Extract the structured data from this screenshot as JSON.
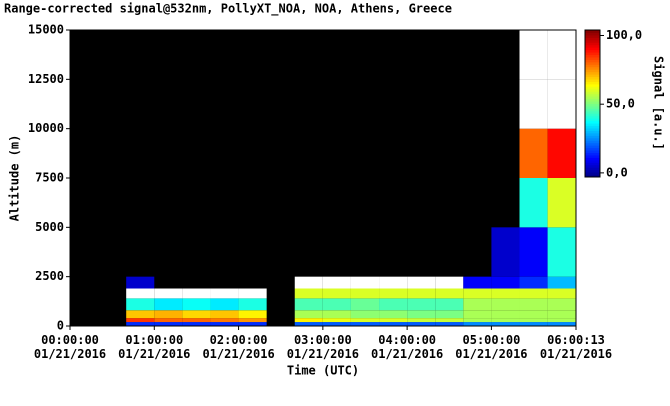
{
  "chart_data": {
    "type": "heatmap",
    "title": "Range-corrected signal@532nm, PollyXT_NOA, NOA, Athens, Greece",
    "x_label": "Time (UTC)",
    "y_label": "Altitude (m)",
    "colorbar_label": "Signal [a.u.]",
    "xlim": [
      0,
      21613
    ],
    "xticks": [
      {
        "value": 0,
        "label": "00:00:00\n01/21/2016"
      },
      {
        "value": 3600,
        "label": "01:00:00\n01/21/2016"
      },
      {
        "value": 7200,
        "label": "02:00:00\n01/21/2016"
      },
      {
        "value": 10800,
        "label": "03:00:00\n01/21/2016"
      },
      {
        "value": 14400,
        "label": "04:00:00\n01/21/2016"
      },
      {
        "value": 18000,
        "label": "05:00:00\n01/21/2016"
      },
      {
        "value": 21613,
        "label": "06:00:13\n01/21/2016"
      }
    ],
    "ylim": [
      0,
      15000
    ],
    "yticks": [
      0,
      2500,
      5000,
      7500,
      10000,
      12500,
      15000
    ],
    "clim": [
      -3,
      104
    ],
    "cticks": [
      {
        "value": 0,
        "label": "0,0"
      },
      {
        "value": 50,
        "label": "50,0"
      },
      {
        "value": 100,
        "label": "100,0"
      }
    ],
    "x_edges": [
      0,
      1200,
      2400,
      3600,
      4800,
      6000,
      7200,
      8400,
      9600,
      10800,
      12000,
      13200,
      14400,
      15600,
      16800,
      18000,
      19200,
      20400,
      21613
    ],
    "y_edges": [
      0,
      200,
      400,
      800,
      1400,
      1900,
      2500,
      5000,
      7500,
      10000,
      12500,
      15000
    ],
    "z": [
      [
        null,
        null,
        15,
        15,
        15,
        15,
        15,
        null,
        20,
        20,
        20,
        20,
        20,
        20,
        25,
        25,
        25,
        25
      ],
      [
        null,
        null,
        85,
        80,
        80,
        78,
        75,
        null,
        65,
        62,
        60,
        60,
        58,
        58,
        55,
        55,
        55,
        55
      ],
      [
        null,
        null,
        70,
        72,
        68,
        70,
        65,
        null,
        55,
        55,
        52,
        52,
        50,
        50,
        55,
        55,
        55,
        55
      ],
      [
        null,
        null,
        40,
        35,
        38,
        35,
        40,
        null,
        45,
        45,
        48,
        45,
        45,
        45,
        55,
        55,
        55,
        55
      ],
      [
        null,
        null,
        110,
        110,
        110,
        110,
        110,
        null,
        60,
        60,
        60,
        60,
        60,
        60,
        60,
        60,
        60,
        60
      ],
      [
        null,
        null,
        5,
        null,
        null,
        null,
        null,
        null,
        110,
        110,
        110,
        110,
        110,
        110,
        10,
        10,
        15,
        30
      ],
      [
        null,
        null,
        null,
        null,
        null,
        null,
        null,
        null,
        null,
        null,
        null,
        null,
        null,
        null,
        null,
        5,
        10,
        40
      ],
      [
        null,
        null,
        null,
        null,
        null,
        null,
        null,
        null,
        null,
        null,
        null,
        null,
        null,
        null,
        null,
        null,
        40,
        60
      ],
      [
        null,
        null,
        null,
        null,
        null,
        null,
        null,
        null,
        null,
        null,
        null,
        null,
        null,
        null,
        null,
        null,
        80,
        90
      ],
      [
        null,
        null,
        null,
        null,
        null,
        null,
        null,
        null,
        null,
        null,
        null,
        null,
        null,
        null,
        null,
        null,
        110,
        110
      ],
      [
        null,
        null,
        null,
        null,
        null,
        null,
        null,
        null,
        null,
        null,
        null,
        null,
        null,
        null,
        null,
        null,
        110,
        110
      ]
    ]
  }
}
